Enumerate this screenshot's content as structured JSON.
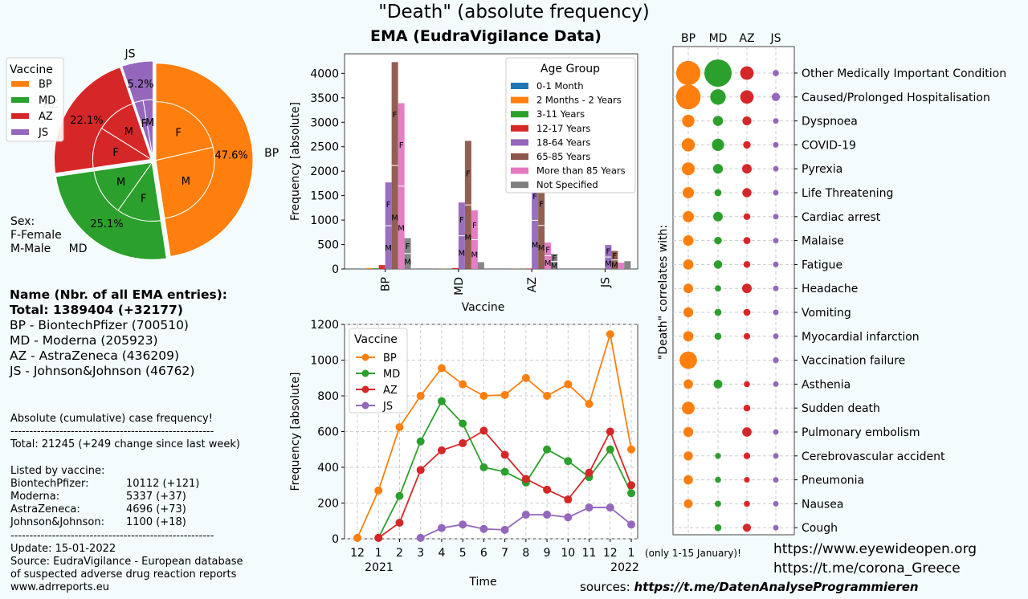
{
  "title": "\"Death\" (absolute frequency)",
  "subtitle": "EMA (EudraVigilance Data)",
  "sex_note": [
    "Sex:",
    "F-Female",
    "M-Male"
  ],
  "info": {
    "header": "Name  (Nbr. of all EMA entries):",
    "total": "Total: 1389404 (+32177)",
    "lines": [
      "BP - BiontechPfizer (700510)",
      "MD - Moderna (205923)",
      "AZ - AstraZeneca (436209)",
      "JS - Johnson&Johnson (46762)"
    ]
  },
  "stats": {
    "heading": "Absolute (cumulative) case frequency!",
    "divider": "------------------------------------------------------",
    "total": "Total: 21245 (+249 change since last week)",
    "listed": "Listed by vaccine:",
    "rows": [
      {
        "name": "BiontechPfizer:",
        "value": "10112 (+121)"
      },
      {
        "name": "Moderna:",
        "value": "5337 (+37)"
      },
      {
        "name": "AstraZeneca:",
        "value": "4696 (+73)"
      },
      {
        "name": "Johnson&Johnson:",
        "value": "1100 (+18)"
      }
    ],
    "update": "Update: 15-01-2022",
    "source_lines": [
      "Source: EudraVigilance - European database",
      "of suspected adverse drug reaction reports",
      "www.adrreports.eu"
    ]
  },
  "links": [
    "https://www.eyewideopen.org",
    "https://t.me/corona_Greece"
  ],
  "sources_label": "sources:",
  "sources_link": "https://t.me/DatenAnalyseProgrammieren",
  "colors": {
    "BP": "#ff7f0e",
    "MD": "#2ca02c",
    "AZ": "#d62728",
    "JS": "#9467bd"
  },
  "chart_data": [
    {
      "type": "pie",
      "legend_title": "Vaccine",
      "legend_position": "top-left",
      "labels": [
        "BP",
        "MD",
        "AZ",
        "JS"
      ],
      "values": [
        47.6,
        25.1,
        22.1,
        5.2
      ],
      "pct_labels": [
        "47.6%",
        "25.1%",
        "22.1%",
        "5.2%"
      ],
      "inner_ring": {
        "description": "Sex split per vaccine",
        "labels": [
          "F",
          "M",
          "F",
          "M",
          "F",
          "M",
          "F",
          "M"
        ],
        "values": [
          21.4,
          26.2,
          12.2,
          12.9,
          11.2,
          10.9,
          2.5,
          2.7
        ]
      }
    },
    {
      "type": "bar",
      "legend_title": "Age Group",
      "legend_position": "top-right",
      "xlabel": "Vaccine",
      "ylabel": "Frequency [absolute]",
      "ylim": [
        0,
        4400
      ],
      "yticks": [
        0,
        500,
        1000,
        1500,
        2000,
        2500,
        3000,
        3500,
        4000
      ],
      "categories": [
        "BP",
        "MD",
        "AZ",
        "JS"
      ],
      "series": [
        {
          "name": "0-1 Month",
          "color": "#1f77b4",
          "values": [
            5,
            2,
            2,
            0
          ]
        },
        {
          "name": "2 Months - 2 Years",
          "color": "#ff7f0e",
          "values": [
            20,
            5,
            3,
            0
          ]
        },
        {
          "name": "3-11 Years",
          "color": "#2ca02c",
          "values": [
            15,
            5,
            3,
            0
          ]
        },
        {
          "name": "12-17 Years",
          "color": "#d62728",
          "values": [
            80,
            20,
            10,
            2
          ]
        },
        {
          "name": "18-64 Years",
          "color": "#9467bd",
          "values": [
            1770,
            1360,
            1990,
            490
          ]
        },
        {
          "name": "65-85 Years",
          "color": "#8c564b",
          "values": [
            4230,
            2620,
            1780,
            370
          ]
        },
        {
          "name": "More than 85 Years",
          "color": "#e377c2",
          "values": [
            3390,
            1200,
            540,
            130
          ]
        },
        {
          "name": "Not Specified",
          "color": "#7f7f7f",
          "values": [
            630,
            140,
            310,
            160
          ]
        }
      ],
      "segment_labels": [
        "F",
        "M"
      ]
    },
    {
      "type": "line",
      "legend_title": "Vaccine",
      "legend_position": "top-left",
      "xlabel": "Time",
      "ylabel": "Frequency [absolute]",
      "ylim": [
        0,
        1200
      ],
      "yticks": [
        0,
        200,
        400,
        600,
        800,
        1000,
        1200
      ],
      "x": [
        "12",
        "1",
        "2",
        "3",
        "4",
        "5",
        "6",
        "7",
        "8",
        "9",
        "10",
        "11",
        "12",
        "1"
      ],
      "year_labels": [
        "2021",
        "2022"
      ],
      "annotation": "(only 1-15 January)!",
      "series": [
        {
          "name": "BP",
          "color": "#ff7f0e",
          "values": [
            5,
            270,
            625,
            800,
            955,
            865,
            800,
            805,
            900,
            800,
            865,
            755,
            1145,
            500
          ]
        },
        {
          "name": "MD",
          "color": "#2ca02c",
          "values": [
            null,
            5,
            240,
            545,
            770,
            645,
            400,
            375,
            315,
            500,
            435,
            345,
            500,
            255
          ]
        },
        {
          "name": "AZ",
          "color": "#d62728",
          "values": [
            null,
            5,
            90,
            385,
            495,
            535,
            605,
            470,
            335,
            275,
            220,
            370,
            600,
            300
          ]
        },
        {
          "name": "JS",
          "color": "#9467bd",
          "values": [
            null,
            null,
            null,
            5,
            60,
            80,
            55,
            50,
            135,
            135,
            120,
            175,
            175,
            80
          ]
        }
      ]
    },
    {
      "type": "scatter",
      "ylabel": "\"Death\" correlates with:",
      "columns": [
        "BP",
        "MD",
        "AZ",
        "JS"
      ],
      "rows": [
        {
          "label": "Other Medically Important Condition",
          "values": [
            1330,
            1690,
            415,
            90
          ]
        },
        {
          "label": "Caused/Prolonged Hospitalisation",
          "values": [
            1370,
            545,
            410,
            155
          ]
        },
        {
          "label": "Dyspnoea",
          "values": [
            350,
            230,
            180,
            65
          ]
        },
        {
          "label": "COVID-19",
          "values": [
            395,
            340,
            130,
            55
          ]
        },
        {
          "label": "Pyrexia",
          "values": [
            375,
            220,
            210,
            60
          ]
        },
        {
          "label": "Life Threatening",
          "values": [
            290,
            110,
            190,
            50
          ]
        },
        {
          "label": "Cardiac arrest",
          "values": [
            280,
            210,
            105,
            40
          ]
        },
        {
          "label": "Malaise",
          "values": [
            250,
            130,
            115,
            45
          ]
        },
        {
          "label": "Fatigue",
          "values": [
            240,
            160,
            105,
            50
          ]
        },
        {
          "label": "Headache",
          "values": [
            210,
            90,
            210,
            50
          ]
        },
        {
          "label": "Vomiting",
          "values": [
            225,
            110,
            110,
            40
          ]
        },
        {
          "label": "Myocardial infarction",
          "values": [
            240,
            110,
            95,
            45
          ]
        },
        {
          "label": "Vaccination failure",
          "values": [
            690,
            0,
            0,
            80
          ]
        },
        {
          "label": "Asthenia",
          "values": [
            205,
            175,
            85,
            40
          ]
        },
        {
          "label": "Sudden death",
          "values": [
            370,
            0,
            105,
            0
          ]
        },
        {
          "label": "Pulmonary embolism",
          "values": [
            225,
            0,
            200,
            40
          ]
        },
        {
          "label": "Cerebrovascular accident",
          "values": [
            190,
            80,
            100,
            40
          ]
        },
        {
          "label": "Pneumonia",
          "values": [
            200,
            85,
            75,
            35
          ]
        },
        {
          "label": "Nausea",
          "values": [
            175,
            90,
            85,
            30
          ]
        },
        {
          "label": "Cough",
          "values": [
            0,
            110,
            150,
            60
          ]
        }
      ]
    }
  ]
}
